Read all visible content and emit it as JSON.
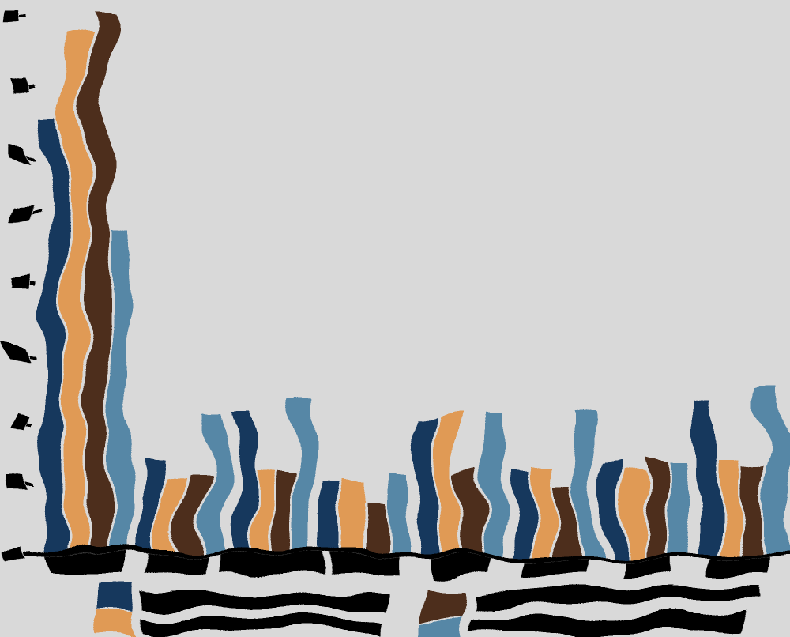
{
  "note": "Source screenshot is a heavily warp-distorted bar chart; every text string is an illegible solid ink blob. Blob placeholders (█) preserve each label's approximate width.",
  "figure": {
    "background_color": "#d9d9d9",
    "ink_color": "#000000"
  },
  "chart_data": {
    "type": "bar",
    "title": "",
    "xlabel": "",
    "ylabel": "",
    "grid": false,
    "legend_position": "bottom",
    "legend_layout": "2x2",
    "ylim": [
      0,
      80
    ],
    "ytick_labels": [
      "██",
      "██",
      "██",
      "██",
      "██",
      "██",
      "██",
      "██",
      "██"
    ],
    "ytick_values": [
      0,
      10,
      20,
      30,
      40,
      50,
      60,
      70,
      80
    ],
    "categories": [
      "████████",
      "█████",
      "███████████",
      "██████",
      "██████",
      "█████",
      "█████",
      "█████"
    ],
    "series": [
      {
        "name": "██████████████████████████",
        "color": "#14395d",
        "values": [
          65,
          13,
          22,
          11,
          21,
          11.5,
          13,
          23.5
        ]
      },
      {
        "name": "██████████████████████████",
        "color": "#e09a55",
        "values": [
          77,
          10.5,
          12.5,
          11.5,
          21,
          12.5,
          11.5,
          13.5
        ]
      },
      {
        "name": "████████████████████████████████",
        "color": "#4e2d1b",
        "values": [
          80,
          11,
          12.5,
          7.5,
          11.5,
          10,
          13.5,
          12.5
        ]
      },
      {
        "name": "██████████████████████████████",
        "color": "#5687a6",
        "values": [
          48,
          22,
          22,
          13,
          21.5,
          21,
          13.5,
          23
        ]
      }
    ]
  }
}
